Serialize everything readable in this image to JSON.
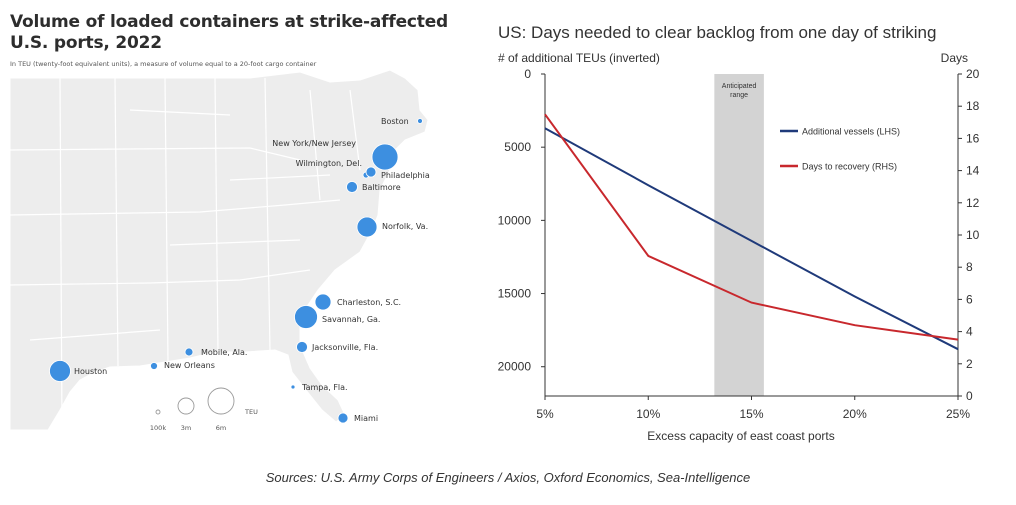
{
  "left_panel": {
    "title_line1": "Volume of loaded containers at strike-affected",
    "title_line2": "U.S. ports, 2022",
    "subtitle": "In TEU (twenty-foot equivalent units), a measure of volume equal to a 20-foot cargo container",
    "bubble_color": "#3d8fe0",
    "legend": {
      "title": "TEU",
      "sizes": [
        "100k",
        "3m",
        "6m"
      ]
    },
    "ports": [
      {
        "name": "Boston"
      },
      {
        "name": "New York/New Jersey"
      },
      {
        "name": "Wilmington, Del."
      },
      {
        "name": "Philadelphia"
      },
      {
        "name": "Baltimore"
      },
      {
        "name": "Norfolk, Va."
      },
      {
        "name": "Charleston, S.C."
      },
      {
        "name": "Savannah, Ga."
      },
      {
        "name": "Mobile, Ala."
      },
      {
        "name": "Jacksonville, Fla."
      },
      {
        "name": "New Orleans"
      },
      {
        "name": "Houston"
      },
      {
        "name": "Tampa, Fla."
      },
      {
        "name": "Miami"
      }
    ]
  },
  "chart_data": {
    "type": "line",
    "title": "US: Days needed to clear backlog from one day of striking",
    "xlabel": "Excess  capacity of east coast ports",
    "ylabel_left": "# of additional TEUs (inverted)",
    "ylabel_right": "Days",
    "x_ticks": [
      "5%",
      "10%",
      "15%",
      "20%",
      "25%"
    ],
    "x": [
      5,
      10,
      15,
      20,
      25
    ],
    "xlim": [
      5,
      25
    ],
    "ylim_left": [
      0,
      22000
    ],
    "y_left_inverted": true,
    "y_left_ticks": [
      0,
      5000,
      10000,
      15000,
      20000
    ],
    "ylim_right": [
      0,
      20
    ],
    "y_right_ticks": [
      0,
      2,
      4,
      6,
      8,
      10,
      12,
      14,
      16,
      18,
      20
    ],
    "shaded_region": {
      "label_line1": "Anticipated",
      "label_line2": "range",
      "x_range": [
        13.2,
        15.6
      ],
      "color": "#d3d3d3"
    },
    "legend_position": "right",
    "series": [
      {
        "name": "Additional vessels (LHS)",
        "axis": "left",
        "color": "#1f3a7a",
        "points": [
          [
            5,
            3700
          ],
          [
            10,
            7600
          ],
          [
            15,
            11400
          ],
          [
            20,
            15200
          ],
          [
            25,
            18800
          ]
        ]
      },
      {
        "name": "Days to recovery (RHS)",
        "axis": "right",
        "color": "#c8282d",
        "points": [
          [
            5,
            17.5
          ],
          [
            10,
            8.7
          ],
          [
            15,
            5.8
          ],
          [
            20,
            4.4
          ],
          [
            25,
            3.5
          ]
        ]
      }
    ]
  },
  "source": "Sources: U.S. Army Corps of Engineers / Axios, Oxford Economics, Sea-Intelligence"
}
